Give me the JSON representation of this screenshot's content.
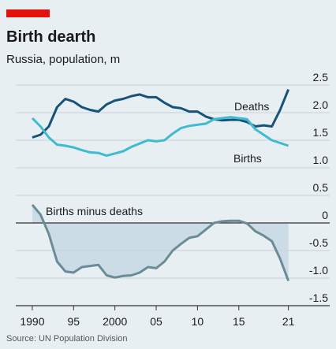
{
  "chart_data": {
    "type": "line",
    "title": "Birth dearth",
    "subtitle": "Russia, population, m",
    "source": "Source: UN Population Division",
    "x": [
      1990,
      1991,
      1992,
      1993,
      1994,
      1995,
      1996,
      1997,
      1998,
      1999,
      2000,
      2001,
      2002,
      2003,
      2004,
      2005,
      2006,
      2007,
      2008,
      2009,
      2010,
      2011,
      2012,
      2013,
      2014,
      2015,
      2016,
      2017,
      2018,
      2019,
      2020,
      2021
    ],
    "series": [
      {
        "name": "Deaths",
        "color": "#17527a",
        "values": [
          1.55,
          1.6,
          1.75,
          2.1,
          2.25,
          2.2,
          2.1,
          2.05,
          2.02,
          2.15,
          2.22,
          2.25,
          2.3,
          2.33,
          2.28,
          2.28,
          2.18,
          2.1,
          2.08,
          2.02,
          2.02,
          1.93,
          1.88,
          1.86,
          1.87,
          1.87,
          1.83,
          1.75,
          1.77,
          1.75,
          2.05,
          2.42
        ]
      },
      {
        "name": "Births",
        "color": "#3ebbd0",
        "values": [
          1.9,
          1.75,
          1.55,
          1.42,
          1.4,
          1.37,
          1.32,
          1.28,
          1.27,
          1.22,
          1.26,
          1.3,
          1.38,
          1.44,
          1.5,
          1.48,
          1.5,
          1.62,
          1.72,
          1.76,
          1.78,
          1.8,
          1.88,
          1.9,
          1.92,
          1.9,
          1.88,
          1.7,
          1.6,
          1.5,
          1.45,
          1.4
        ]
      },
      {
        "name": "Births minus deaths",
        "color": "#6a8c96",
        "area": true,
        "values": [
          0.33,
          0.15,
          -0.2,
          -0.7,
          -0.88,
          -0.9,
          -0.8,
          -0.78,
          -0.76,
          -0.95,
          -0.99,
          -0.96,
          -0.95,
          -0.9,
          -0.8,
          -0.82,
          -0.7,
          -0.5,
          -0.38,
          -0.27,
          -0.24,
          -0.12,
          0,
          0.03,
          0.04,
          0.04,
          -0.01,
          -0.15,
          -0.23,
          -0.33,
          -0.65,
          -1.05
        ]
      }
    ],
    "xlim": [
      1988,
      2026
    ],
    "xticks": [
      1990,
      {
        "value": 1995,
        "label": "95"
      },
      2000,
      {
        "value": 2005,
        "label": "05"
      },
      {
        "value": 2010,
        "label": "10"
      },
      {
        "value": 2015,
        "label": "15"
      },
      {
        "value": 2021,
        "label": "21"
      }
    ],
    "ylim": [
      -1.5,
      2.5
    ],
    "yticks": [
      2.5,
      {
        "value": 2,
        "label": "2.0"
      },
      1.5,
      {
        "value": 1,
        "label": "1.0"
      },
      0.5,
      0,
      -0.5,
      {
        "value": -1,
        "label": "-1.0"
      },
      -1.5
    ],
    "grid": true
  }
}
